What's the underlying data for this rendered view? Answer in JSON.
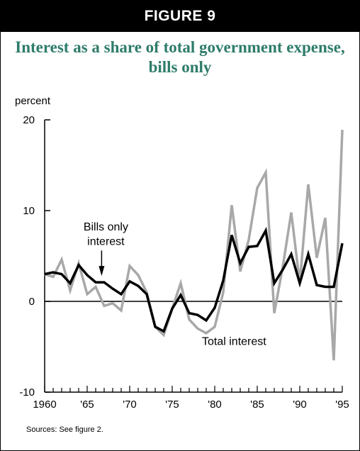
{
  "header": {
    "label": "FIGURE 9"
  },
  "source_note": "Sources: See figure 2.",
  "chart_data": {
    "type": "line",
    "title": "Interest as a share of total government expense, bills only",
    "ylabel": "percent",
    "xlabel": "",
    "ylim": [
      -10,
      20
    ],
    "xlim": [
      1960,
      1995
    ],
    "y_ticks": [
      -10,
      0,
      10,
      20
    ],
    "y_tick_labels": [
      "-10",
      "0",
      "10",
      "20"
    ],
    "x_tick_values": [
      1960,
      1965,
      1970,
      1975,
      1980,
      1985,
      1990,
      1995
    ],
    "x_tick_labels": [
      "1960",
      "'65",
      "'70",
      "'75",
      "'80",
      "'85",
      "'90",
      "'95"
    ],
    "grid": false,
    "zero_line": true,
    "x": [
      1960,
      1961,
      1962,
      1963,
      1964,
      1965,
      1966,
      1967,
      1968,
      1969,
      1970,
      1971,
      1972,
      1973,
      1974,
      1975,
      1976,
      1977,
      1978,
      1979,
      1980,
      1981,
      1982,
      1983,
      1984,
      1985,
      1986,
      1987,
      1988,
      1989,
      1990,
      1991,
      1992,
      1993,
      1994,
      1995
    ],
    "series": [
      {
        "key": "total",
        "color": "#a8a8a8",
        "values": [
          3.0,
          2.7,
          4.6,
          1.2,
          4.2,
          0.8,
          1.6,
          -0.5,
          -0.2,
          -1.0,
          3.9,
          2.9,
          1.0,
          -2.8,
          -3.7,
          -0.8,
          2.0,
          -2.0,
          -3.0,
          -3.5,
          -2.8,
          1.0,
          10.6,
          3.3,
          6.8,
          12.5,
          14.2,
          -1.3,
          3.8,
          9.8,
          2.0,
          12.9,
          4.8,
          9.2,
          -6.5,
          18.9
        ]
      },
      {
        "key": "bills",
        "color": "#000000",
        "values": [
          3.0,
          3.2,
          3.0,
          2.0,
          4.0,
          2.9,
          2.1,
          2.1,
          1.4,
          0.8,
          2.2,
          1.7,
          0.8,
          -2.8,
          -3.3,
          -0.8,
          0.7,
          -1.3,
          -1.5,
          -2.1,
          -0.7,
          2.3,
          7.3,
          4.2,
          6.0,
          6.1,
          7.8,
          2.0,
          3.5,
          5.2,
          2.0,
          5.2,
          1.8,
          1.6,
          1.6,
          6.4
        ]
      }
    ],
    "annotations": {
      "bills_label": [
        "Bills only",
        "interest"
      ],
      "total_label": "Total interest"
    }
  }
}
